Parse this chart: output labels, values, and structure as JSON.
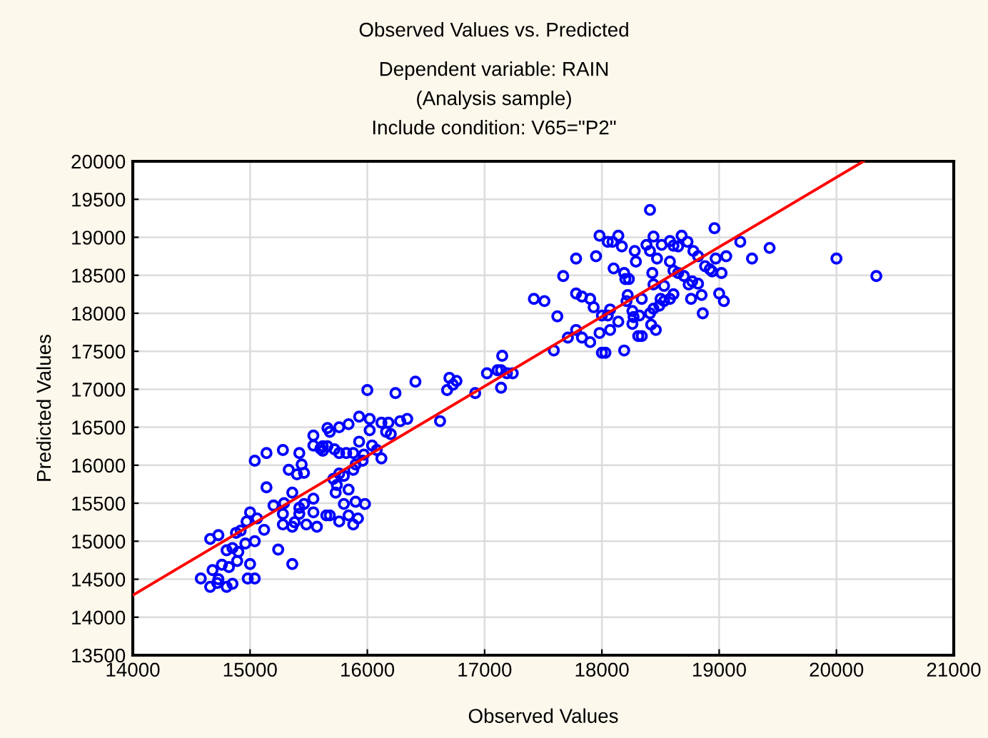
{
  "chart_data": {
    "type": "scatter",
    "title": "Observed Values vs. Predicted",
    "subtitle": "Dependent variable: RAIN\n(Analysis sample)\nInclude condition: V65=\"P2\"",
    "xlabel": "Observed Values",
    "ylabel": "Predicted Values",
    "xlim": [
      14000,
      21000
    ],
    "xticks": [
      14000,
      15000,
      16000,
      17000,
      18000,
      19000,
      20000,
      21000
    ],
    "ylim": [
      13500,
      20000
    ],
    "yticks": [
      13500,
      14000,
      14500,
      15000,
      15500,
      16000,
      16500,
      17000,
      17500,
      18000,
      18500,
      19000,
      19500,
      20000
    ],
    "grid": true,
    "legend": false,
    "series": [
      {
        "marker": "circle",
        "color": "#0000ff",
        "x": [
          14580,
          14660,
          14680,
          14730,
          14720,
          14800,
          14850,
          14760,
          14820,
          14890,
          15000,
          14980,
          15040,
          14800,
          14850,
          14900,
          14960,
          15040,
          14660,
          14730,
          14880,
          14920,
          14970,
          15000,
          15060,
          15120,
          15240,
          15360,
          15140,
          15200,
          15290,
          15280,
          15280,
          15360,
          15360,
          15380,
          15420,
          15460,
          15420,
          15480,
          15540,
          15540,
          15570,
          15650,
          15680,
          15760,
          15840,
          15880,
          15920,
          15980,
          15900,
          15800,
          15730,
          15740,
          15840,
          15710,
          15760,
          15800,
          15880,
          15900,
          15960,
          15970,
          15880,
          15820,
          15760,
          15720,
          15660,
          15620,
          15600,
          15540,
          15540,
          15660,
          15680,
          15760,
          15840,
          15930,
          15930,
          16020,
          16020,
          16040,
          16080,
          16120,
          16120,
          16160,
          16180,
          16200,
          16280,
          16340,
          16620,
          15040,
          15140,
          15280,
          15420,
          15440,
          15330,
          15400,
          15460,
          15620,
          16000,
          16240,
          16410,
          16680,
          16700,
          16730,
          16760,
          16920,
          17020,
          17110,
          17140,
          17150,
          17140,
          17190,
          17240,
          17420,
          17510,
          17590,
          17710,
          17780,
          17830,
          17900,
          17980,
          18000,
          18030,
          18070,
          18140,
          18190,
          18050,
          18000,
          18070,
          17930,
          17900,
          17830,
          17780,
          17620,
          17670,
          17780,
          17950,
          17980,
          18050,
          18090,
          18140,
          18170,
          18100,
          18190,
          18200,
          18230,
          18280,
          18290,
          18380,
          18410,
          18440,
          18410,
          18470,
          18510,
          18580,
          18610,
          18680,
          18650,
          18730,
          18780,
          18820,
          18580,
          18430,
          18440,
          18530,
          18610,
          18650,
          18700,
          18740,
          18770,
          18820,
          18880,
          18920,
          18940,
          18970,
          18960,
          19020,
          19060,
          19180,
          19280,
          19430,
          20000,
          20340,
          18850,
          18760,
          18610,
          18580,
          18530,
          18490,
          18440,
          18410,
          18340,
          18220,
          18210,
          18260,
          18320,
          18260,
          18270,
          18310,
          18340,
          18420,
          18460,
          18500,
          18860,
          19000,
          19040
        ],
        "values": [
          14510,
          14400,
          14620,
          14500,
          14450,
          14400,
          14440,
          14690,
          14660,
          14740,
          14700,
          14510,
          14510,
          14880,
          14910,
          14860,
          14970,
          15000,
          15030,
          15080,
          15110,
          15140,
          15260,
          15380,
          15300,
          15150,
          14890,
          14700,
          15710,
          15470,
          15500,
          15360,
          15220,
          15640,
          15190,
          15250,
          15440,
          15490,
          15360,
          15220,
          15560,
          15380,
          15190,
          15340,
          15340,
          15260,
          15340,
          15220,
          15300,
          15490,
          15520,
          15490,
          15640,
          15740,
          15680,
          15820,
          15890,
          15860,
          15940,
          16010,
          16060,
          16140,
          16160,
          16160,
          16160,
          16210,
          16250,
          16250,
          16220,
          16390,
          16260,
          16490,
          16440,
          16500,
          16540,
          16640,
          16310,
          16610,
          16460,
          16260,
          16200,
          16090,
          16560,
          16440,
          16560,
          16410,
          16580,
          16610,
          16580,
          16060,
          16160,
          16200,
          16160,
          16010,
          15940,
          15880,
          15900,
          16190,
          16990,
          16950,
          17100,
          16990,
          17150,
          17060,
          17110,
          16950,
          17210,
          17250,
          17250,
          17440,
          17020,
          17210,
          17210,
          18190,
          18160,
          17510,
          17680,
          17780,
          17680,
          17620,
          17740,
          17480,
          17480,
          17780,
          17890,
          17510,
          17970,
          17970,
          18050,
          18080,
          18190,
          18220,
          18260,
          17960,
          18490,
          18720,
          18750,
          19020,
          18940,
          18940,
          19020,
          18880,
          18590,
          18530,
          18450,
          18450,
          18820,
          18680,
          18900,
          18820,
          19010,
          19360,
          18720,
          18900,
          18950,
          18890,
          19020,
          18880,
          18940,
          18820,
          18750,
          18680,
          18530,
          18380,
          18360,
          18560,
          18530,
          18490,
          18380,
          18420,
          18390,
          18620,
          18580,
          18550,
          18720,
          19120,
          18530,
          18750,
          18940,
          18720,
          18860,
          18720,
          18490,
          18240,
          18190,
          18250,
          18190,
          18160,
          18100,
          18060,
          18000,
          18190,
          18240,
          18160,
          18030,
          17970,
          17860,
          17950,
          17700,
          17700,
          17850,
          17780,
          18190,
          18000,
          18260,
          18160
        ]
      },
      {
        "type": "line",
        "marker": "none",
        "line_style": "solid",
        "color": "#ff0000",
        "x": [
          14000,
          20230
        ],
        "values": [
          14290,
          20000
        ]
      }
    ]
  }
}
